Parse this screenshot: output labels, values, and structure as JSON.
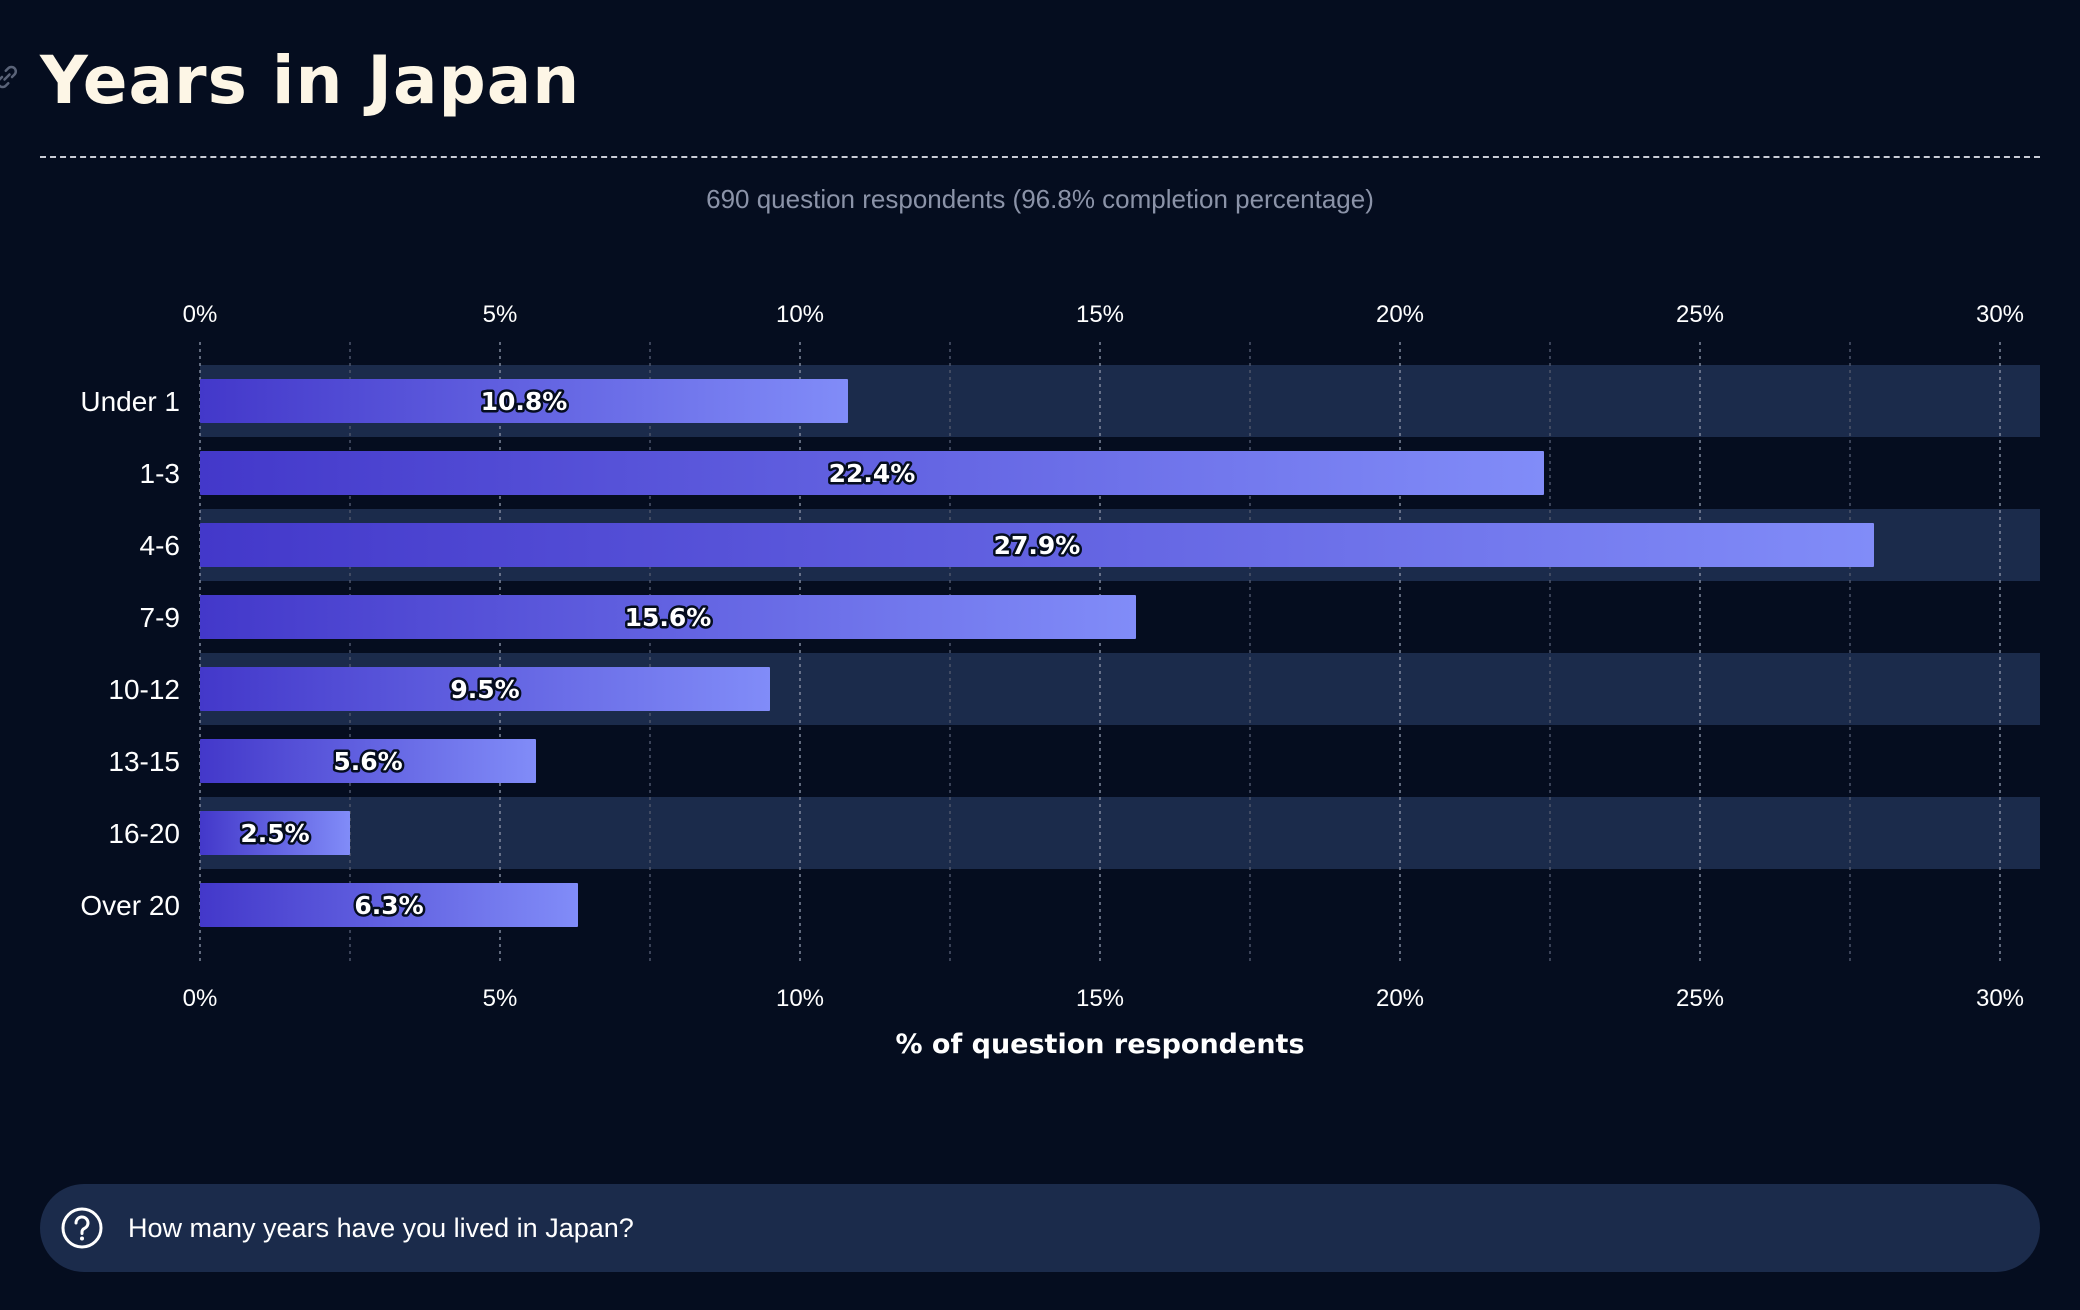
{
  "page": {
    "title": "Years in Japan",
    "subtitle": "690 question respondents (96.8% completion percentage)",
    "anchor_icon": "link-icon"
  },
  "colors": {
    "background": "#050d1f",
    "band": "#1b2b4b",
    "bar_start": "#4338ca",
    "bar_end": "#818cf8",
    "title": "#fdf6e6"
  },
  "chart_data": {
    "type": "bar",
    "orientation": "horizontal",
    "categories": [
      "Under 1",
      "1-3",
      "4-6",
      "7-9",
      "10-12",
      "13-15",
      "16-20",
      "Over 20"
    ],
    "values": [
      10.8,
      22.4,
      27.9,
      15.6,
      9.5,
      5.6,
      2.5,
      6.3
    ],
    "value_labels": [
      "10.8%",
      "22.4%",
      "27.9%",
      "15.6%",
      "9.5%",
      "5.6%",
      "2.5%",
      "6.3%"
    ],
    "xlabel": "% of question respondents",
    "ylabel": "",
    "xlim": [
      0,
      30
    ],
    "x_ticks": [
      0,
      5,
      10,
      15,
      20,
      25,
      30
    ],
    "x_tick_labels": [
      "0%",
      "5%",
      "10%",
      "15%",
      "20%",
      "25%",
      "30%"
    ],
    "grid": true,
    "legend": "none"
  },
  "footer": {
    "question_icon": "question-circle-icon",
    "question": "How many years have you lived in Japan?"
  }
}
